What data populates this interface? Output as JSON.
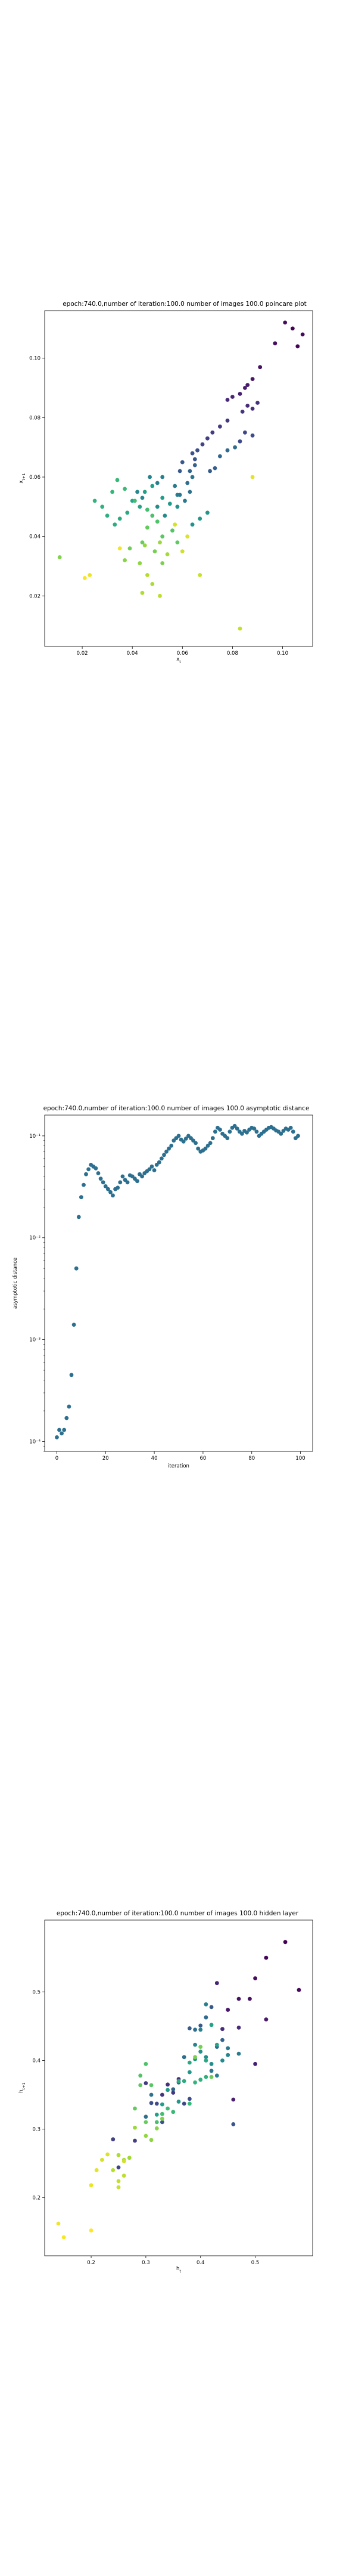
{
  "chart_data": [
    {
      "type": "scatter",
      "title": "epoch:740.0,number of iteration:100.0 number of images 100.0 poincare plot",
      "xlabel": "x_t",
      "ylabel": "x_{t+1}",
      "xlim": [
        0.005,
        0.112
      ],
      "ylim": [
        0.003,
        0.116
      ],
      "xticks": [
        0.02,
        0.04,
        0.06,
        0.08,
        0.1
      ],
      "xtick_labels": [
        "0.02",
        "0.04",
        "0.06",
        "0.08",
        "0.10"
      ],
      "yticks": [
        0.02,
        0.04,
        0.06,
        0.08,
        0.1
      ],
      "ytick_labels": [
        "0.02",
        "0.04",
        "0.06",
        "0.08",
        "0.10"
      ],
      "colormap": "viridis",
      "color_encoding": "iteration index (purple = early, yellow = late)",
      "x": [
        0.104,
        0.106,
        0.108,
        0.101,
        0.097,
        0.091,
        0.088,
        0.086,
        0.085,
        0.083,
        0.08,
        0.078,
        0.086,
        0.088,
        0.09,
        0.084,
        0.078,
        0.075,
        0.072,
        0.07,
        0.068,
        0.085,
        0.083,
        0.088,
        0.066,
        0.064,
        0.065,
        0.06,
        0.059,
        0.071,
        0.073,
        0.065,
        0.063,
        0.075,
        0.078,
        0.081,
        0.062,
        0.063,
        0.064,
        0.059,
        0.061,
        0.057,
        0.058,
        0.052,
        0.05,
        0.047,
        0.044,
        0.042,
        0.053,
        0.05,
        0.058,
        0.064,
        0.07,
        0.067,
        0.055,
        0.052,
        0.048,
        0.045,
        0.043,
        0.04,
        0.038,
        0.035,
        0.033,
        0.03,
        0.028,
        0.025,
        0.032,
        0.034,
        0.037,
        0.041,
        0.046,
        0.048,
        0.05,
        0.056,
        0.052,
        0.058,
        0.046,
        0.044,
        0.039,
        0.049,
        0.052,
        0.011,
        0.037,
        0.043,
        0.045,
        0.051,
        0.054,
        0.048,
        0.044,
        0.046,
        0.051,
        0.083,
        0.067,
        0.06,
        0.057,
        0.062,
        0.088,
        0.023,
        0.035,
        0.021
      ],
      "y": [
        0.11,
        0.104,
        0.108,
        0.112,
        0.105,
        0.097,
        0.093,
        0.091,
        0.09,
        0.088,
        0.087,
        0.086,
        0.084,
        0.083,
        0.085,
        0.082,
        0.079,
        0.077,
        0.075,
        0.073,
        0.071,
        0.075,
        0.072,
        0.074,
        0.069,
        0.068,
        0.066,
        0.065,
        0.062,
        0.062,
        0.063,
        0.064,
        0.062,
        0.067,
        0.069,
        0.07,
        0.058,
        0.055,
        0.06,
        0.054,
        0.052,
        0.057,
        0.054,
        0.06,
        0.058,
        0.06,
        0.053,
        0.055,
        0.047,
        0.05,
        0.05,
        0.044,
        0.048,
        0.046,
        0.051,
        0.053,
        0.057,
        0.055,
        0.05,
        0.052,
        0.048,
        0.046,
        0.044,
        0.047,
        0.05,
        0.052,
        0.055,
        0.059,
        0.056,
        0.052,
        0.049,
        0.047,
        0.045,
        0.042,
        0.04,
        0.038,
        0.043,
        0.038,
        0.036,
        0.035,
        0.031,
        0.033,
        0.032,
        0.031,
        0.037,
        0.038,
        0.034,
        0.024,
        0.021,
        0.027,
        0.02,
        0.009,
        0.027,
        0.035,
        0.044,
        0.04,
        0.06,
        0.027,
        0.036,
        0.026
      ],
      "color_values": [
        0.0,
        0.01,
        0.02,
        0.03,
        0.04,
        0.05,
        0.06,
        0.07,
        0.08,
        0.09,
        0.1,
        0.11,
        0.12,
        0.13,
        0.14,
        0.15,
        0.16,
        0.17,
        0.18,
        0.19,
        0.2,
        0.21,
        0.22,
        0.23,
        0.24,
        0.25,
        0.26,
        0.27,
        0.28,
        0.29,
        0.3,
        0.31,
        0.32,
        0.33,
        0.34,
        0.35,
        0.36,
        0.37,
        0.38,
        0.39,
        0.4,
        0.41,
        0.42,
        0.43,
        0.44,
        0.45,
        0.46,
        0.47,
        0.48,
        0.49,
        0.5,
        0.51,
        0.52,
        0.53,
        0.54,
        0.55,
        0.56,
        0.57,
        0.58,
        0.59,
        0.6,
        0.61,
        0.62,
        0.63,
        0.64,
        0.65,
        0.66,
        0.67,
        0.68,
        0.69,
        0.7,
        0.71,
        0.72,
        0.73,
        0.74,
        0.75,
        0.76,
        0.77,
        0.78,
        0.79,
        0.8,
        0.81,
        0.82,
        0.83,
        0.84,
        0.85,
        0.86,
        0.87,
        0.88,
        0.89,
        0.9,
        0.91,
        0.92,
        0.93,
        0.94,
        0.95,
        0.96,
        0.97,
        0.98,
        0.99
      ]
    },
    {
      "type": "scatter",
      "title": "epoch:740.0,number of iteration:100.0  number of images 100.0 asymptotic distance",
      "xlabel": "iteration",
      "ylabel": "asymptotic distance",
      "xlim": [
        -5,
        105
      ],
      "ylim": [
        8e-05,
        0.16
      ],
      "yscale": "log",
      "xticks": [
        0,
        20,
        40,
        60,
        80,
        100
      ],
      "xtick_labels": [
        "0",
        "20",
        "40",
        "60",
        "80",
        "100"
      ],
      "yticks": [
        0.0001,
        0.001,
        0.01,
        0.1
      ],
      "ytick_labels": [
        "10⁻⁴",
        "10⁻³",
        "10⁻²",
        "10⁻¹"
      ],
      "color": "#2c6f8f",
      "x": [
        0,
        1,
        2,
        3,
        4,
        5,
        6,
        7,
        8,
        9,
        10,
        11,
        12,
        13,
        14,
        15,
        16,
        17,
        18,
        19,
        20,
        21,
        22,
        23,
        24,
        25,
        26,
        27,
        28,
        29,
        30,
        31,
        32,
        33,
        34,
        35,
        36,
        37,
        38,
        39,
        40,
        41,
        42,
        43,
        44,
        45,
        46,
        47,
        48,
        49,
        50,
        51,
        52,
        53,
        54,
        55,
        56,
        57,
        58,
        59,
        60,
        61,
        62,
        63,
        64,
        65,
        66,
        67,
        68,
        69,
        70,
        71,
        72,
        73,
        74,
        75,
        76,
        77,
        78,
        79,
        80,
        81,
        82,
        83,
        84,
        85,
        86,
        87,
        88,
        89,
        90,
        91,
        92,
        93,
        94,
        95,
        96,
        97,
        98,
        99
      ],
      "y": [
        0.00011,
        0.00013,
        0.00012,
        0.00013,
        0.00017,
        0.00022,
        0.00045,
        0.0014,
        0.005,
        0.016,
        0.025,
        0.033,
        0.042,
        0.047,
        0.052,
        0.05,
        0.048,
        0.043,
        0.038,
        0.035,
        0.032,
        0.03,
        0.028,
        0.026,
        0.03,
        0.031,
        0.035,
        0.04,
        0.037,
        0.035,
        0.041,
        0.04,
        0.038,
        0.036,
        0.042,
        0.04,
        0.043,
        0.045,
        0.047,
        0.05,
        0.046,
        0.052,
        0.055,
        0.06,
        0.065,
        0.07,
        0.075,
        0.08,
        0.09,
        0.095,
        0.1,
        0.092,
        0.088,
        0.094,
        0.1,
        0.095,
        0.09,
        0.085,
        0.075,
        0.07,
        0.072,
        0.075,
        0.08,
        0.085,
        0.095,
        0.11,
        0.12,
        0.115,
        0.105,
        0.1,
        0.095,
        0.11,
        0.12,
        0.125,
        0.118,
        0.11,
        0.105,
        0.112,
        0.108,
        0.115,
        0.12,
        0.118,
        0.11,
        0.1,
        0.105,
        0.11,
        0.115,
        0.12,
        0.122,
        0.118,
        0.113,
        0.11,
        0.105,
        0.112,
        0.118,
        0.115,
        0.12,
        0.11,
        0.095,
        0.1
      ]
    },
    {
      "type": "scatter",
      "title": "epoch:740.0,number of iteration:100.0  number of images 100.0 hidden layer",
      "xlabel": "h_t",
      "ylabel": "h_{t+1}",
      "xlim": [
        0.115,
        0.605
      ],
      "ylim": [
        0.115,
        0.605
      ],
      "xticks": [
        0.2,
        0.3,
        0.4,
        0.5
      ],
      "xtick_labels": [
        "0.2",
        "0.3",
        "0.4",
        "0.5"
      ],
      "yticks": [
        0.2,
        0.3,
        0.4,
        0.5
      ],
      "ytick_labels": [
        "0.2",
        "0.3",
        "0.4",
        "0.5"
      ],
      "colormap": "viridis",
      "color_encoding": "iteration index (purple = early, yellow = late)",
      "x": [
        0.555,
        0.52,
        0.58,
        0.5,
        0.49,
        0.47,
        0.45,
        0.52,
        0.5,
        0.46,
        0.43,
        0.47,
        0.44,
        0.36,
        0.34,
        0.33,
        0.35,
        0.3,
        0.28,
        0.24,
        0.25,
        0.37,
        0.32,
        0.38,
        0.31,
        0.33,
        0.46,
        0.42,
        0.4,
        0.38,
        0.36,
        0.35,
        0.44,
        0.43,
        0.41,
        0.39,
        0.37,
        0.3,
        0.31,
        0.42,
        0.45,
        0.47,
        0.43,
        0.41,
        0.4,
        0.39,
        0.45,
        0.44,
        0.42,
        0.41,
        0.4,
        0.39,
        0.38,
        0.36,
        0.34,
        0.33,
        0.32,
        0.42,
        0.43,
        0.41,
        0.38,
        0.37,
        0.36,
        0.41,
        0.4,
        0.39,
        0.38,
        0.35,
        0.34,
        0.33,
        0.32,
        0.3,
        0.29,
        0.31,
        0.29,
        0.28,
        0.3,
        0.42,
        0.4,
        0.39,
        0.33,
        0.32,
        0.31,
        0.3,
        0.28,
        0.27,
        0.26,
        0.25,
        0.24,
        0.26,
        0.25,
        0.25,
        0.26,
        0.22,
        0.23,
        0.21,
        0.2,
        0.14,
        0.15,
        0.2
      ],
      "y": [
        0.573,
        0.55,
        0.503,
        0.52,
        0.49,
        0.49,
        0.474,
        0.46,
        0.395,
        0.343,
        0.513,
        0.448,
        0.446,
        0.373,
        0.365,
        0.35,
        0.353,
        0.367,
        0.283,
        0.285,
        0.244,
        0.337,
        0.337,
        0.344,
        0.338,
        0.31,
        0.307,
        0.478,
        0.451,
        0.447,
        0.368,
        0.358,
        0.43,
        0.42,
        0.463,
        0.445,
        0.405,
        0.318,
        0.35,
        0.385,
        0.418,
        0.41,
        0.378,
        0.482,
        0.445,
        0.423,
        0.408,
        0.4,
        0.395,
        0.405,
        0.413,
        0.402,
        0.383,
        0.34,
        0.357,
        0.336,
        0.321,
        0.452,
        0.423,
        0.4,
        0.397,
        0.37,
        0.37,
        0.376,
        0.372,
        0.368,
        0.337,
        0.325,
        0.33,
        0.322,
        0.31,
        0.395,
        0.378,
        0.364,
        0.364,
        0.33,
        0.31,
        0.376,
        0.42,
        0.405,
        0.315,
        0.301,
        0.284,
        0.29,
        0.302,
        0.258,
        0.255,
        0.262,
        0.24,
        0.232,
        0.224,
        0.215,
        0.253,
        0.255,
        0.263,
        0.24,
        0.218,
        0.162,
        0.142,
        0.152
      ]
    }
  ]
}
